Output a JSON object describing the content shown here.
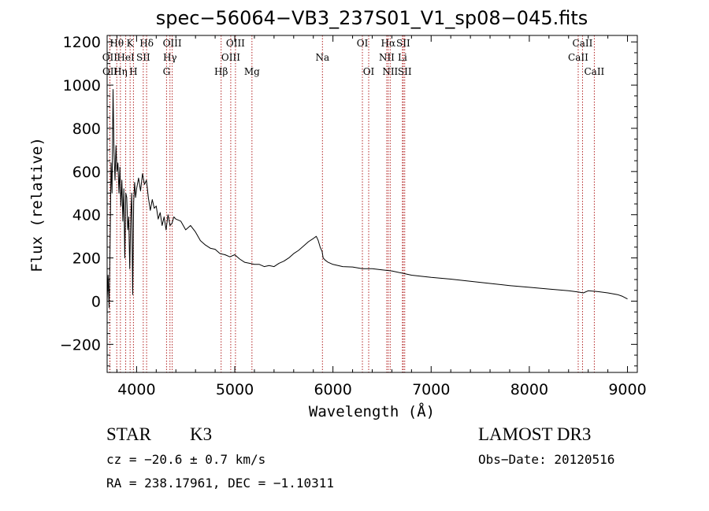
{
  "chart_data": {
    "type": "line",
    "title": "spec−56064−VB3_237S01_V1_sp08−045.fits",
    "xlabel": "Wavelength (Å)",
    "ylabel": "Flux (relative)",
    "xlim": [
      3700,
      9100
    ],
    "ylim": [
      -330,
      1230
    ],
    "x_ticks": [
      4000,
      5000,
      6000,
      7000,
      8000,
      9000
    ],
    "x_tick_labels": [
      "4000",
      "5000",
      "6000",
      "7000",
      "8000",
      "9000"
    ],
    "y_ticks": [
      -200,
      0,
      200,
      400,
      600,
      800,
      1000,
      1200
    ],
    "y_tick_labels": [
      "−200",
      "0",
      "200",
      "400",
      "600",
      "800",
      "1000",
      "1200"
    ],
    "series": [
      {
        "name": "spectrum",
        "x": [
          3700,
          3710,
          3720,
          3730,
          3740,
          3750,
          3760,
          3770,
          3780,
          3790,
          3800,
          3810,
          3820,
          3830,
          3840,
          3850,
          3860,
          3870,
          3880,
          3890,
          3900,
          3910,
          3920,
          3930,
          3940,
          3950,
          3960,
          3970,
          3980,
          3990,
          4000,
          4020,
          4040,
          4060,
          4080,
          4100,
          4120,
          4140,
          4160,
          4180,
          4200,
          4220,
          4240,
          4260,
          4280,
          4300,
          4320,
          4340,
          4360,
          4380,
          4400,
          4450,
          4500,
          4550,
          4600,
          4650,
          4700,
          4750,
          4800,
          4850,
          4900,
          4950,
          5000,
          5050,
          5100,
          5150,
          5200,
          5250,
          5300,
          5350,
          5400,
          5450,
          5500,
          5550,
          5600,
          5650,
          5700,
          5750,
          5800,
          5830,
          5850,
          5870,
          5890,
          5900,
          5920,
          5950,
          6000,
          6100,
          6200,
          6300,
          6400,
          6500,
          6600,
          6700,
          6800,
          6900,
          7000,
          7200,
          7400,
          7600,
          7800,
          8000,
          8200,
          8400,
          8500,
          8550,
          8600,
          8700,
          8800,
          8900,
          8950,
          9000
        ],
        "values": [
          0,
          120,
          -30,
          250,
          640,
          500,
          980,
          690,
          560,
          720,
          600,
          640,
          500,
          620,
          440,
          560,
          370,
          520,
          200,
          500,
          480,
          330,
          390,
          150,
          380,
          500,
          30,
          460,
          550,
          480,
          520,
          570,
          510,
          590,
          540,
          560,
          480,
          420,
          470,
          430,
          440,
          380,
          410,
          350,
          390,
          330,
          400,
          350,
          360,
          390,
          380,
          370,
          330,
          350,
          320,
          280,
          260,
          245,
          240,
          220,
          215,
          205,
          215,
          195,
          180,
          175,
          170,
          170,
          160,
          165,
          160,
          175,
          185,
          200,
          220,
          235,
          255,
          275,
          290,
          300,
          280,
          250,
          230,
          200,
          190,
          180,
          170,
          160,
          158,
          150,
          150,
          145,
          140,
          130,
          120,
          115,
          110,
          102,
          92,
          82,
          72,
          64,
          56,
          48,
          42,
          38,
          48,
          44,
          38,
          30,
          22,
          10
        ]
      }
    ],
    "annotations": [
      {
        "label": "Hθ",
        "wavelength": 3798,
        "row": 1
      },
      {
        "label": "OII",
        "wavelength": 3727,
        "row": 2
      },
      {
        "label": "OII",
        "wavelength": 3729,
        "row": 3
      },
      {
        "label": "HeI",
        "wavelength": 3889,
        "row": 2
      },
      {
        "label": "Hη",
        "wavelength": 3835,
        "row": 3
      },
      {
        "label": "K",
        "wavelength": 3934,
        "row": 1
      },
      {
        "label": "SII",
        "wavelength": 4068,
        "row": 2
      },
      {
        "label": "H",
        "wavelength": 3968,
        "row": 3
      },
      {
        "label": "Hδ",
        "wavelength": 4102,
        "row": 1
      },
      {
        "label": "OIII",
        "wavelength": 4363,
        "row": 1
      },
      {
        "label": "Hγ",
        "wavelength": 4340,
        "row": 2
      },
      {
        "label": "G",
        "wavelength": 4305,
        "row": 3
      },
      {
        "label": "Hβ",
        "wavelength": 4861,
        "row": 3
      },
      {
        "label": "OIII",
        "wavelength": 5007,
        "row": 1
      },
      {
        "label": "OIII",
        "wavelength": 4959,
        "row": 2
      },
      {
        "label": "Mg",
        "wavelength": 5175,
        "row": 3
      },
      {
        "label": "Na",
        "wavelength": 5893,
        "row": 2
      },
      {
        "label": "OI",
        "wavelength": 6300,
        "row": 1
      },
      {
        "label": "OI",
        "wavelength": 6364,
        "row": 3
      },
      {
        "label": "Hα",
        "wavelength": 6563,
        "row": 1
      },
      {
        "label": "NII",
        "wavelength": 6548,
        "row": 2
      },
      {
        "label": "NII",
        "wavelength": 6583,
        "row": 3
      },
      {
        "label": "SII",
        "wavelength": 6716,
        "row": 1
      },
      {
        "label": "Li",
        "wavelength": 6708,
        "row": 2
      },
      {
        "label": "SII",
        "wavelength": 6731,
        "row": 3
      },
      {
        "label": "CaII",
        "wavelength": 8542,
        "row": 1
      },
      {
        "label": "CaII",
        "wavelength": 8498,
        "row": 2
      },
      {
        "label": "CaII",
        "wavelength": 8662,
        "row": 3
      }
    ],
    "marker_lines": [
      3727,
      3729,
      3798,
      3835,
      3889,
      3934,
      3968,
      4068,
      4102,
      4305,
      4340,
      4363,
      4861,
      4959,
      5007,
      5175,
      5893,
      6300,
      6364,
      6548,
      6563,
      6583,
      6708,
      6716,
      6731,
      8498,
      8542,
      8662
    ]
  },
  "info": {
    "object_type": "STAR",
    "subclass": "K3",
    "survey": "LAMOST DR3",
    "cz": "cz = −20.6 ± 0.7 km/s",
    "obs_date": "Obs−Date: 20120516",
    "coords": "RA = 238.17961, DEC =  −1.10311"
  },
  "colors": {
    "axis": "#000000",
    "spectrum": "#000000",
    "marker": "#b22222"
  }
}
